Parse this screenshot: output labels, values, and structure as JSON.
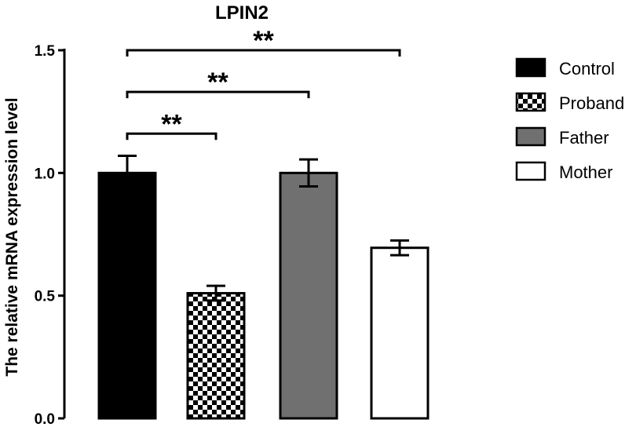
{
  "chart_data": {
    "type": "bar",
    "title": "LPIN2",
    "xlabel": "",
    "ylabel": "The relative mRNA expression level",
    "ylim": [
      0,
      1.5
    ],
    "yticks": [
      "0.0",
      "0.5",
      "1.0",
      "1.5"
    ],
    "categories": [
      "Control",
      "Proband",
      "Father",
      "Mother"
    ],
    "values": [
      1.0,
      0.51,
      1.0,
      0.695
    ],
    "errors": [
      0.07,
      0.03,
      0.055,
      0.03
    ],
    "legend": {
      "position": "right",
      "entries": [
        "Control",
        "Proband",
        "Father",
        "Mother"
      ]
    },
    "fills": [
      "#000000",
      "checker",
      "#707070",
      "#ffffff"
    ],
    "significance": [
      {
        "from": "Control",
        "to": "Proband",
        "label": "**",
        "y": 1.16
      },
      {
        "from": "Control",
        "to": "Father",
        "label": "**",
        "y": 1.33
      },
      {
        "from": "Control",
        "to": "Mother",
        "label": "**",
        "y": 1.5
      }
    ]
  }
}
